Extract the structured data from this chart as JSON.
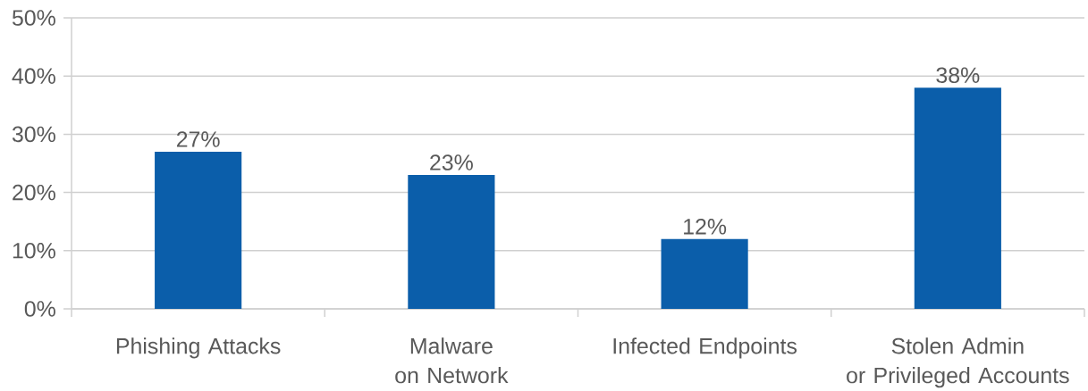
{
  "chart_data": {
    "type": "bar",
    "categories": [
      "Phishing Attacks",
      "Malware\non Network",
      "Infected Endpoints",
      "Stolen Admin\nor Privileged Accounts"
    ],
    "values": [
      27,
      23,
      12,
      38
    ],
    "value_labels": [
      "27%",
      "23%",
      "12%",
      "38%"
    ],
    "color": "#0b5eaa",
    "ylim": [
      0,
      50
    ],
    "yticks": [
      {
        "value": 0,
        "label": "0%"
      },
      {
        "value": 10,
        "label": "10%"
      },
      {
        "value": 20,
        "label": "20%"
      },
      {
        "value": 30,
        "label": "30%"
      },
      {
        "value": 40,
        "label": "40%"
      },
      {
        "value": 50,
        "label": "50%"
      }
    ],
    "grid": "y"
  }
}
